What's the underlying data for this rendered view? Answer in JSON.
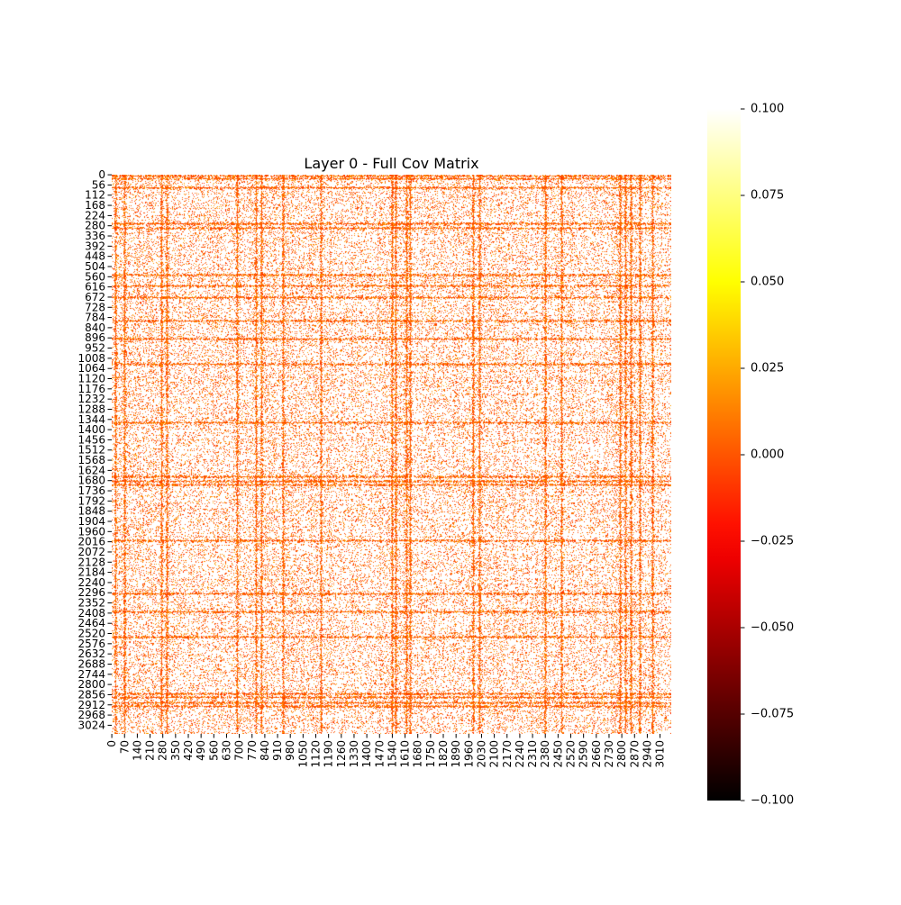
{
  "chart_data": {
    "type": "heatmap",
    "title": "Layer 0 - Full Cov Matrix",
    "xlabel": "",
    "ylabel": "",
    "matrix_size": 3072,
    "colormap": "hot",
    "colors": {
      "stops": [
        "#000000",
        "#ff0000",
        "#ffff00",
        "#ffffff"
      ]
    },
    "x_tick_labels": [
      "0",
      "70",
      "140",
      "210",
      "280",
      "350",
      "420",
      "490",
      "560",
      "630",
      "700",
      "770",
      "840",
      "910",
      "980",
      "1050",
      "1120",
      "1190",
      "1260",
      "1330",
      "1400",
      "1470",
      "1540",
      "1610",
      "1680",
      "1750",
      "1820",
      "1890",
      "1960",
      "2030",
      "2100",
      "2170",
      "2240",
      "2310",
      "2380",
      "2450",
      "2520",
      "2590",
      "2660",
      "2730",
      "2800",
      "2870",
      "2940",
      "3010"
    ],
    "y_tick_labels": [
      "0",
      "56",
      "112",
      "168",
      "224",
      "280",
      "336",
      "392",
      "448",
      "504",
      "560",
      "616",
      "672",
      "728",
      "784",
      "840",
      "896",
      "952",
      "1008",
      "1064",
      "1120",
      "1176",
      "1232",
      "1288",
      "1344",
      "1400",
      "1456",
      "1512",
      "1568",
      "1624",
      "1680",
      "1736",
      "1792",
      "1848",
      "1904",
      "1960",
      "2016",
      "2072",
      "2128",
      "2184",
      "2240",
      "2296",
      "2352",
      "2408",
      "2464",
      "2520",
      "2576",
      "2632",
      "2688",
      "2744",
      "2800",
      "2856",
      "2912",
      "2968",
      "3024"
    ],
    "vmin": -0.1,
    "vmax": 0.1,
    "colorbar_ticks": [
      "0.100",
      "0.075",
      "0.050",
      "0.025",
      "0.000",
      "−0.025",
      "−0.050",
      "−0.075",
      "−0.100"
    ],
    "strong_rows": [
      5,
      20,
      70,
      265,
      290,
      550,
      610,
      675,
      800,
      900,
      1040,
      1360,
      1655,
      1680,
      1700,
      2010,
      2300,
      2400,
      2540,
      2850,
      2870,
      2900,
      2920
    ],
    "strong_cols": [
      20,
      70,
      270,
      300,
      690,
      790,
      820,
      940,
      1150,
      1540,
      1560,
      1620,
      1635,
      1985,
      2020,
      2380,
      2470,
      2790,
      2820,
      2850,
      2900,
      2970
    ],
    "background_value": 0.1,
    "typical_value": 0.0
  }
}
